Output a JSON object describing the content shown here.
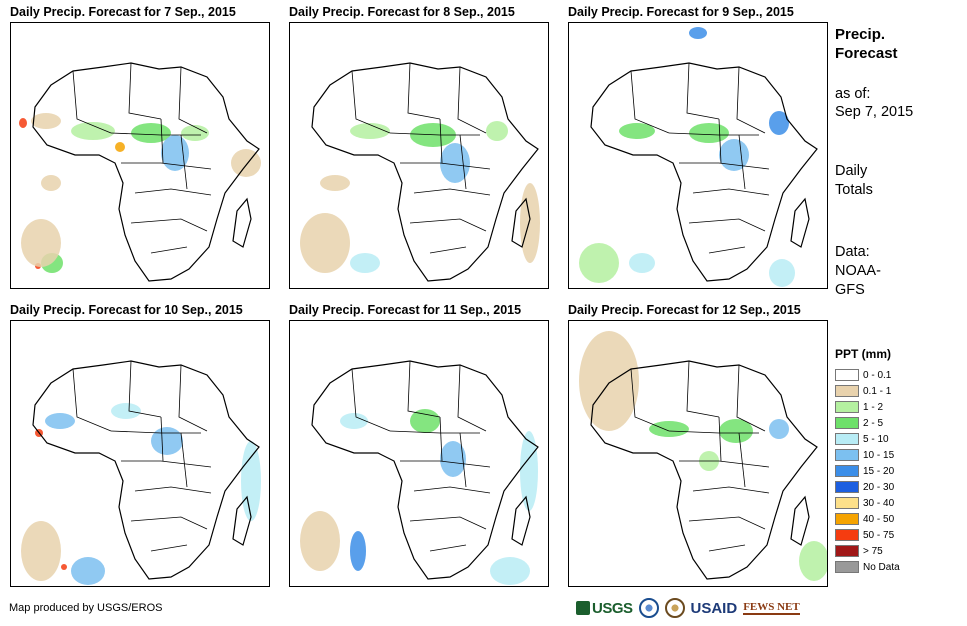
{
  "panels": [
    {
      "title": "Daily Precip. Forecast for 7 Sep., 2015"
    },
    {
      "title": "Daily Precip. Forecast for 8 Sep., 2015"
    },
    {
      "title": "Daily Precip. Forecast for 9 Sep., 2015"
    },
    {
      "title": "Daily Precip. Forecast for 10  Sep., 2015"
    },
    {
      "title": "Daily Precip. Forecast for 11 Sep., 2015"
    },
    {
      "title": "Daily Precip. Forecast for 12 Sep., 2015"
    }
  ],
  "side": {
    "title_line1": "Precip.",
    "title_line2": "Forecast",
    "asof_label": "as of:",
    "asof_date": "Sep 7, 2015",
    "totals_line1": "Daily",
    "totals_line2": "Totals",
    "data_line1": "Data:",
    "data_line2": "NOAA-",
    "data_line3": "GFS"
  },
  "legend": {
    "title": "PPT (mm)",
    "items": [
      {
        "label": "0 - 0.1",
        "color": "#ffffff"
      },
      {
        "label": "0.1 - 1",
        "color": "#e8d2ad"
      },
      {
        "label": "1 - 2",
        "color": "#b4f0a0"
      },
      {
        "label": "2 - 5",
        "color": "#6ee06a"
      },
      {
        "label": "5 - 10",
        "color": "#b8ecf5"
      },
      {
        "label": "10 - 15",
        "color": "#7cc0f0"
      },
      {
        "label": "15 - 20",
        "color": "#3c8ee8"
      },
      {
        "label": "20 - 30",
        "color": "#1d5fe0"
      },
      {
        "label": "30 - 40",
        "color": "#fde08a"
      },
      {
        "label": "40 - 50",
        "color": "#f5a300"
      },
      {
        "label": "50 - 75",
        "color": "#f53c10"
      },
      {
        "label": "> 75",
        "color": "#a01818"
      },
      {
        "label": "No Data",
        "color": "#999999"
      }
    ]
  },
  "footer": {
    "credit": "Map produced by USGS/EROS",
    "logos": [
      "USGS",
      "NOAA",
      "DOI",
      "USAID",
      "FEWS NET"
    ]
  }
}
